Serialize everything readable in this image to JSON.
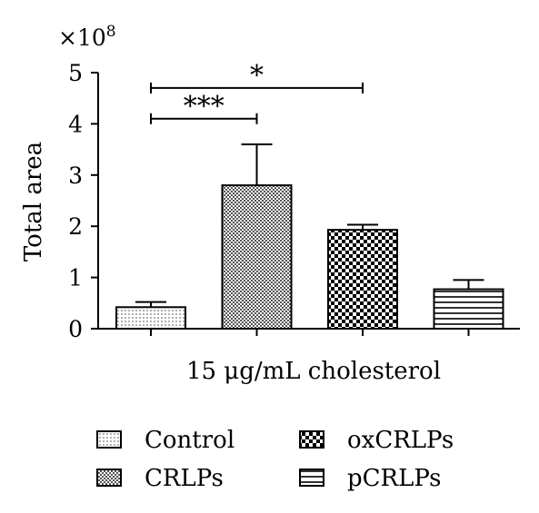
{
  "chart_data": {
    "type": "bar",
    "ylabel": "Total area",
    "xlabel": "15 μg/mL cholesterol",
    "y_multiplier": "×10",
    "y_multiplier_exp": "8",
    "ylim": [
      0,
      5
    ],
    "yticks": [
      "0",
      "1",
      "2",
      "3",
      "4",
      "5"
    ],
    "categories": [
      "Control",
      "CRLPs",
      "oxCRLPs",
      "pCRLPs"
    ],
    "values": [
      0.42,
      2.8,
      1.93,
      0.77
    ],
    "errors": [
      0.1,
      0.8,
      0.1,
      0.18
    ],
    "patterns": [
      "dots",
      "crosshatch",
      "checker",
      "hlines"
    ],
    "significance": [
      {
        "from": 0,
        "to": 1,
        "label": "***",
        "y": 4.1
      },
      {
        "from": 0,
        "to": 2,
        "label": "*",
        "y": 4.7
      }
    ],
    "grid": false,
    "legend": {
      "placement": "bottom",
      "entries": [
        "Control",
        "CRLPs",
        "oxCRLPs",
        "pCRLPs"
      ]
    }
  }
}
